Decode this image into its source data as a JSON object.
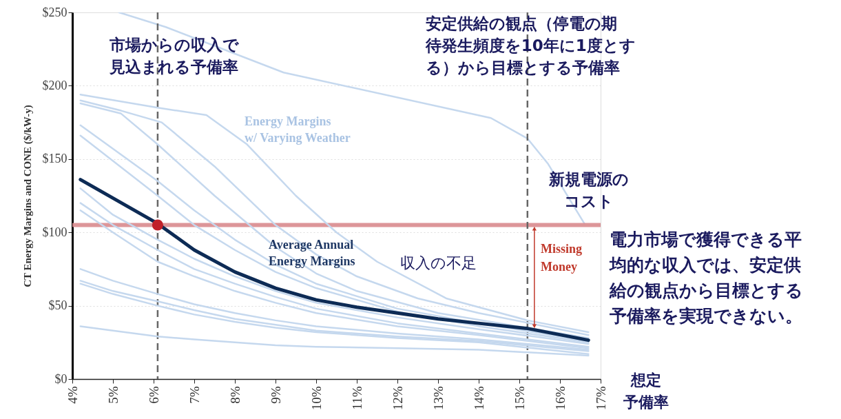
{
  "chart_data": {
    "type": "line",
    "ylabel": "CT Energy Margins and CONE ($/kW-y)",
    "xlabel": "想定予備率",
    "xlim": [
      4,
      17
    ],
    "xticks": [
      {
        "value": 4,
        "label": "4%"
      },
      {
        "value": 5,
        "label": "5%"
      },
      {
        "value": 6,
        "label": "6%"
      },
      {
        "value": 7,
        "label": "7%"
      },
      {
        "value": 8,
        "label": "8%"
      },
      {
        "value": 9,
        "label": "9%"
      },
      {
        "value": 10,
        "label": "10%"
      },
      {
        "value": 11,
        "label": "11%"
      },
      {
        "value": 12,
        "label": "12%"
      },
      {
        "value": 13,
        "label": "13%"
      },
      {
        "value": 14,
        "label": "14%"
      },
      {
        "value": 15,
        "label": "15%"
      },
      {
        "value": 16,
        "label": "16%"
      },
      {
        "value": 17,
        "label": "17%"
      }
    ],
    "ylim": [
      0,
      250
    ],
    "yticks": [
      {
        "value": 0,
        "label": "$0"
      },
      {
        "value": 50,
        "label": "$50"
      },
      {
        "value": 100,
        "label": "$100"
      },
      {
        "value": 150,
        "label": "$150"
      },
      {
        "value": 200,
        "label": "$200"
      },
      {
        "value": 250,
        "label": "$250"
      }
    ],
    "grid": "y",
    "line_style": "solid",
    "series": [
      {
        "color": "#c5d8ee",
        "x": [
          5.15,
          6.3,
          9.2,
          14.3,
          15.2,
          15.7,
          16.6
        ],
        "values": [
          250,
          240,
          209,
          178,
          164,
          147,
          106
        ]
      },
      {
        "color": "#c5d8ee",
        "x": [
          4.2,
          6.1,
          7.3,
          8.3,
          9.5,
          10.5,
          11.5,
          13.2,
          15.2,
          16.7
        ],
        "values": [
          194,
          185,
          180,
          160,
          125,
          100,
          80,
          55,
          40,
          32
        ]
      },
      {
        "color": "#c5d8ee",
        "x": [
          4.2,
          5.2,
          6.2,
          7.5,
          9,
          10,
          11,
          12.5,
          14,
          16.7
        ],
        "values": [
          190,
          183,
          175,
          145,
          105,
          85,
          70,
          55,
          45,
          30
        ]
      },
      {
        "color": "#c5d8ee",
        "x": [
          4.2,
          5.2,
          6.1,
          7.5,
          9,
          10,
          11,
          13,
          16.7
        ],
        "values": [
          188,
          181,
          160,
          125,
          90,
          72,
          60,
          45,
          28
        ]
      },
      {
        "color": "#c5d8ee",
        "x": [
          4.2,
          6.1,
          7,
          8,
          9,
          10,
          12,
          14,
          16.7
        ],
        "values": [
          173,
          135,
          115,
          95,
          78,
          65,
          48,
          38,
          26
        ]
      },
      {
        "color": "#c5d8ee",
        "x": [
          4.2,
          6.1,
          7,
          8,
          9,
          10,
          12,
          14,
          16.7
        ],
        "values": [
          166,
          125,
          105,
          88,
          73,
          62,
          46,
          36,
          25
        ]
      },
      {
        "color": "#c5d8ee",
        "x": [
          4.2,
          5,
          6.1,
          7,
          8,
          9,
          10,
          12,
          14,
          16.7
        ],
        "values": [
          130,
          112,
          95,
          82,
          70,
          60,
          52,
          42,
          34,
          24
        ]
      },
      {
        "color": "#c5d8ee",
        "x": [
          4.2,
          5,
          6.1,
          7,
          8,
          9,
          10,
          12,
          14,
          16.7
        ],
        "values": [
          120,
          105,
          88,
          75,
          65,
          56,
          48,
          38,
          31,
          22
        ]
      },
      {
        "color": "#c5d8ee",
        "x": [
          4.2,
          5,
          6.1,
          7,
          8,
          9,
          10,
          12,
          14,
          16.7
        ],
        "values": [
          115,
          100,
          80,
          70,
          60,
          52,
          45,
          36,
          30,
          21
        ]
      },
      {
        "color": "#c5d8ee",
        "x": [
          4.2,
          5,
          6.1,
          7,
          8,
          9,
          10,
          12,
          14,
          16.7
        ],
        "values": [
          75,
          67,
          58,
          51,
          45,
          40,
          36,
          31,
          27,
          20
        ]
      },
      {
        "color": "#c5d8ee",
        "x": [
          4.2,
          5,
          6.1,
          7,
          8,
          9,
          10,
          12,
          14,
          16.7
        ],
        "values": [
          67,
          60,
          53,
          47,
          41,
          37,
          33,
          29,
          26,
          19
        ]
      },
      {
        "color": "#c5d8ee",
        "x": [
          4.2,
          5,
          6.1,
          7,
          8,
          9,
          10,
          12,
          14,
          16.7
        ],
        "values": [
          65,
          58,
          50,
          44,
          39,
          35,
          32,
          28,
          25,
          17
        ]
      },
      {
        "color": "#c5d8ee",
        "x": [
          4.2,
          5,
          6.1,
          7,
          8,
          9,
          10,
          12,
          14,
          16.7
        ],
        "values": [
          36,
          33,
          29,
          27,
          25,
          23,
          22,
          21,
          20,
          16
        ]
      },
      {
        "name": "Average Annual Energy Margins",
        "color": "#0d2b55",
        "x": [
          4.2,
          6.1,
          7,
          8,
          9,
          10,
          11,
          12,
          13,
          14,
          15.2,
          16.7
        ],
        "values": [
          136,
          106,
          88,
          73,
          62,
          54,
          49,
          45,
          41,
          38,
          34.5,
          26.5
        ]
      },
      {
        "type": "scatter",
        "color": "#c0202a",
        "x": [
          6.1
        ],
        "values": [
          105
        ]
      }
    ],
    "ref_lines": [
      {
        "axis": "y",
        "value": 105,
        "label": "新規電源のコスト",
        "color": "#d98b8e",
        "line_style": "solid"
      },
      {
        "axis": "x",
        "value": 6.1,
        "label": "市場からの収入で見込まれる予備率",
        "color": "#666666",
        "line_style": "dashed"
      },
      {
        "axis": "x",
        "value": 15.2,
        "label": "安定供給の観点（停電の期待発生頻度を10年に1度とする）から目標とする予備率",
        "color": "#666666",
        "line_style": "dashed"
      }
    ],
    "annotations": [
      "Energy Margins w/ Varying Weather",
      "収入の不足",
      "Missing Money",
      "電力市場で獲得できる平均的な収入では、安定供給の観点から目標とする予備率を実現できない。"
    ]
  }
}
